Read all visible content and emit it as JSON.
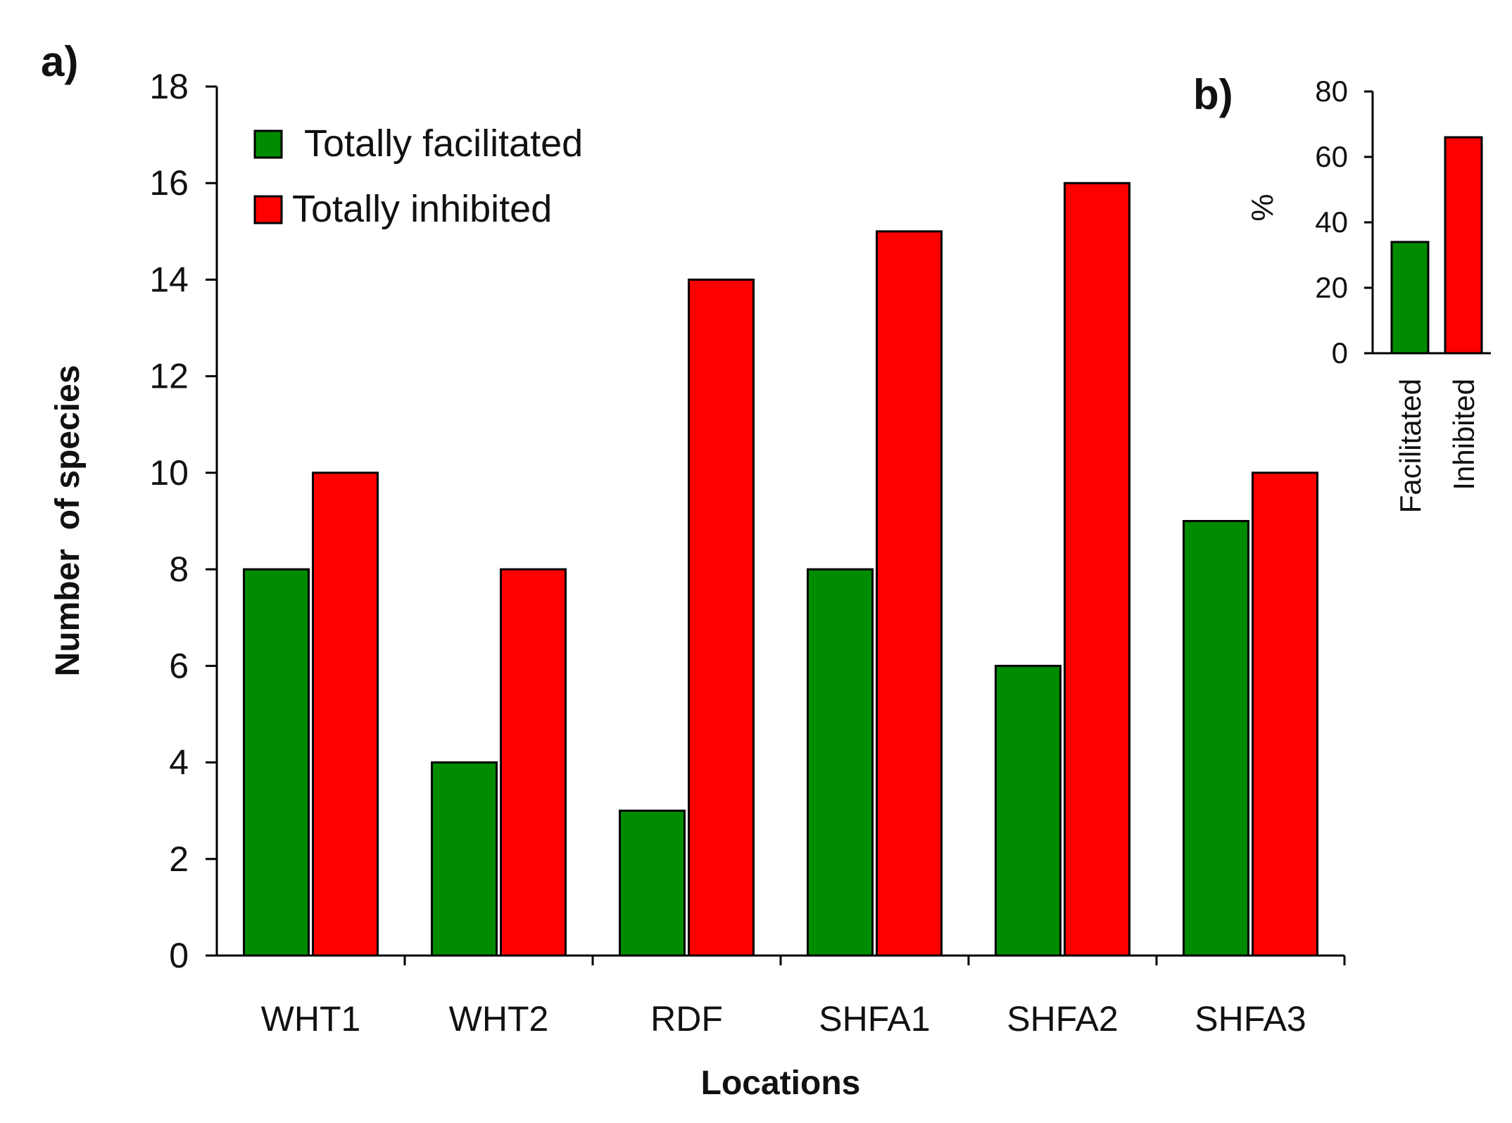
{
  "chart_data": [
    {
      "panel": "a)",
      "type": "bar",
      "title": "",
      "xlabel": "Locations",
      "ylabel": "Number  of species",
      "ylim": [
        0,
        18
      ],
      "yticks": [
        "0",
        "2",
        "4",
        "6",
        "8",
        "10",
        "12",
        "14",
        "16",
        "18"
      ],
      "categories": [
        "WHT1",
        "WHT2",
        "RDF",
        "SHFA1",
        "SHFA2",
        "SHFA3"
      ],
      "series": [
        {
          "name": "Totally facilitated",
          "color": "#008C00",
          "values": [
            8,
            4,
            3,
            8,
            6,
            9
          ]
        },
        {
          "name": "Totally inhibited",
          "color": "#FF0000",
          "values": [
            10,
            8,
            14,
            15,
            16,
            10
          ]
        }
      ],
      "legend_position": "top-left",
      "grid": false
    },
    {
      "panel": "b)",
      "type": "bar",
      "title": "",
      "xlabel": "",
      "ylabel": "%",
      "ylim": [
        0,
        80
      ],
      "yticks": [
        "0",
        "20",
        "40",
        "60",
        "80"
      ],
      "categories": [
        "Facilitated",
        "Inhibited"
      ],
      "values": [
        34,
        66
      ],
      "colors": [
        "#008C00",
        "#FF0000"
      ],
      "grid": false
    }
  ]
}
